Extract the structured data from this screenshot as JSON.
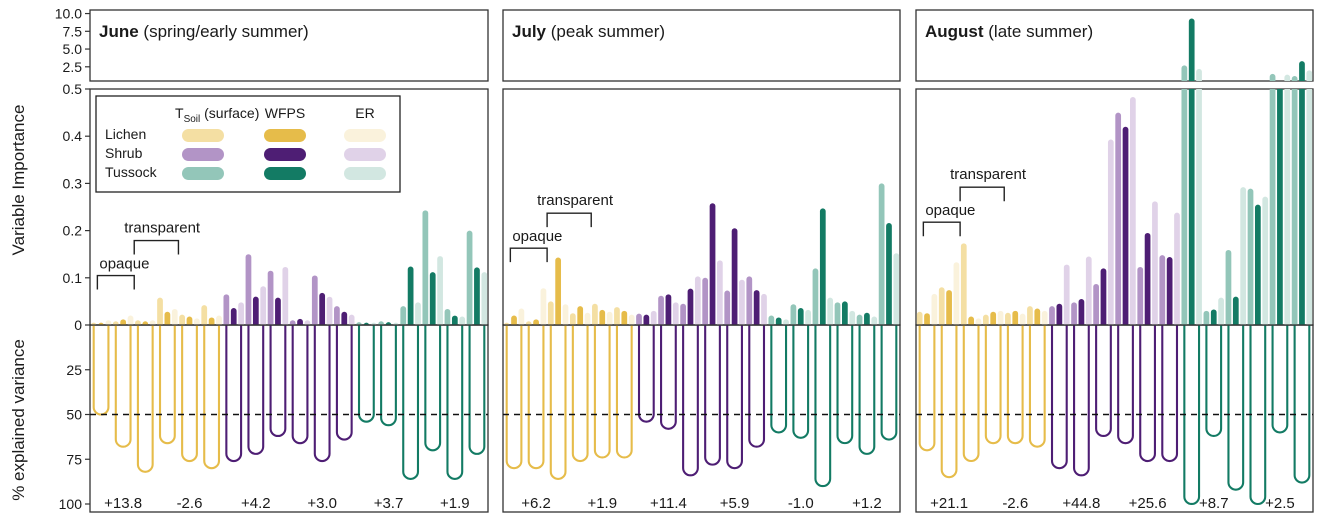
{
  "chart_data": {
    "type": "bar",
    "ylabel_top": "Variable Importance",
    "ylabel_bottom": "% explained variance",
    "top_axis": {
      "upper_ticks": [
        "10.0",
        "7.5",
        "5.0",
        "2.5"
      ],
      "upper_range": [
        0.5,
        10.5
      ],
      "lower_ticks": [
        "0.5",
        "0.4",
        "0.3",
        "0.2",
        "0.1",
        "0"
      ],
      "lower_range": [
        0,
        0.5
      ]
    },
    "bottom_axis": {
      "ticks": [
        "25",
        "50",
        "75",
        "100"
      ],
      "range": [
        0,
        100
      ],
      "reference_line": 50
    },
    "legend": {
      "columns": [
        "T",
        "Soil",
        " (surface)",
        "WFPS",
        "ER"
      ],
      "rows": [
        "Lichen",
        "Shrub",
        "Tussock"
      ],
      "colors": [
        [
          "#f4dfa3",
          "#e6bc4a",
          "#faf2dc"
        ],
        [
          "#b294c6",
          "#4e1e74",
          "#e0d2e8"
        ],
        [
          "#93c6b9",
          "#137b64",
          "#d2e7e1"
        ]
      ]
    },
    "annotations": {
      "opaque": "opaque",
      "transparent": "transparent"
    },
    "colors": {
      "lichen": "#e6bc4a",
      "shrub": "#4e1e74",
      "tussock": "#137b64"
    },
    "panels": [
      {
        "title_bold": "June",
        "title_rest": " (spring/early summer)",
        "diffs": [
          "+13.8",
          "-2.6",
          "+4.2",
          "+3.0",
          "+3.7",
          "+1.9"
        ],
        "groups": [
          {
            "vegetation": "lichen",
            "bars": [
              0.005,
              0.005,
              0.01,
              0.008,
              0.012,
              0.02,
              0.01,
              0.008,
              0.01,
              0.058,
              0.028,
              0.034,
              0.022,
              0.018,
              0.014,
              0.042,
              0.016,
              0.02
            ],
            "loops": [
              50,
              68,
              82,
              66,
              76,
              80
            ]
          },
          {
            "vegetation": "shrub",
            "bars": [
              0.065,
              0.036,
              0.048,
              0.15,
              0.06,
              0.082,
              0.115,
              0.058,
              0.123,
              0.01,
              0.013,
              0.01,
              0.105,
              0.068,
              0.06,
              0.04,
              0.028,
              0.022
            ],
            "loops": [
              76,
              72,
              62,
              66,
              76,
              64
            ]
          },
          {
            "vegetation": "tussock",
            "bars": [
              0.006,
              0.005,
              0.005,
              0.008,
              0.006,
              0.005,
              0.04,
              0.124,
              0.048,
              0.243,
              0.112,
              0.146,
              0.034,
              0.02,
              0.018,
              0.2,
              0.122,
              0.112
            ],
            "loops": [
              54,
              56,
              86,
              70,
              86,
              72
            ]
          }
        ]
      },
      {
        "title_bold": "July",
        "title_rest": " (peak summer)",
        "diffs": [
          "+6.2",
          "+1.9",
          "+11.4",
          "+5.9",
          "-1.0",
          "+1.2"
        ],
        "groups": [
          {
            "vegetation": "lichen",
            "bars": [
              0.005,
              0.02,
              0.035,
              0.008,
              0.012,
              0.078,
              0.05,
              0.143,
              0.044,
              0.025,
              0.04,
              0.026,
              0.045,
              0.032,
              0.028,
              0.038,
              0.03,
              0.022
            ],
            "loops": [
              80,
              80,
              86,
              76,
              74,
              74
            ]
          },
          {
            "vegetation": "shrub",
            "bars": [
              0.024,
              0.022,
              0.03,
              0.062,
              0.065,
              0.048,
              0.045,
              0.077,
              0.103,
              0.1,
              0.258,
              0.137,
              0.073,
              0.205,
              0.096,
              0.103,
              0.074,
              0.066
            ],
            "loops": [
              54,
              58,
              84,
              78,
              80,
              68
            ]
          },
          {
            "vegetation": "tussock",
            "bars": [
              0.02,
              0.016,
              0.012,
              0.044,
              0.036,
              0.032,
              0.12,
              0.247,
              0.058,
              0.048,
              0.05,
              0.03,
              0.022,
              0.026,
              0.018,
              0.3,
              0.216,
              0.152
            ],
            "loops": [
              60,
              63,
              90,
              66,
              72,
              64
            ]
          }
        ]
      },
      {
        "title_bold": "August",
        "title_rest": " (late summer)",
        "diffs": [
          "+21.1",
          "-2.6",
          "+44.8",
          "+25.6",
          "+8.7",
          "+2.5"
        ],
        "groups": [
          {
            "vegetation": "lichen",
            "bars": [
              0.028,
              0.025,
              0.066,
              0.08,
              0.074,
              0.133,
              0.173,
              0.018,
              0.014,
              0.022,
              0.028,
              0.03,
              0.026,
              0.03,
              0.024,
              0.04,
              0.035,
              0.03
            ],
            "loops": [
              70,
              85,
              76,
              66,
              66,
              68
            ]
          },
          {
            "vegetation": "shrub",
            "bars": [
              0.04,
              0.045,
              0.128,
              0.048,
              0.055,
              0.145,
              0.087,
              0.12,
              0.393,
              0.45,
              0.42,
              0.483,
              0.123,
              0.195,
              0.262,
              0.148,
              0.144,
              0.238
            ],
            "loops": [
              80,
              84,
              62,
              66,
              76,
              76
            ]
          },
          {
            "vegetation": "tussock",
            "bars": [
              2.7,
              9.3,
              2.2,
              0.03,
              0.033,
              0.058,
              0.159,
              0.06,
              0.292,
              0.289,
              0.255,
              0.272,
              1.5,
              0.5,
              1.4,
              1.2,
              3.3,
              2.0
            ],
            "loops": [
              100,
              62,
              92,
              100,
              60,
              88
            ]
          }
        ]
      }
    ]
  }
}
